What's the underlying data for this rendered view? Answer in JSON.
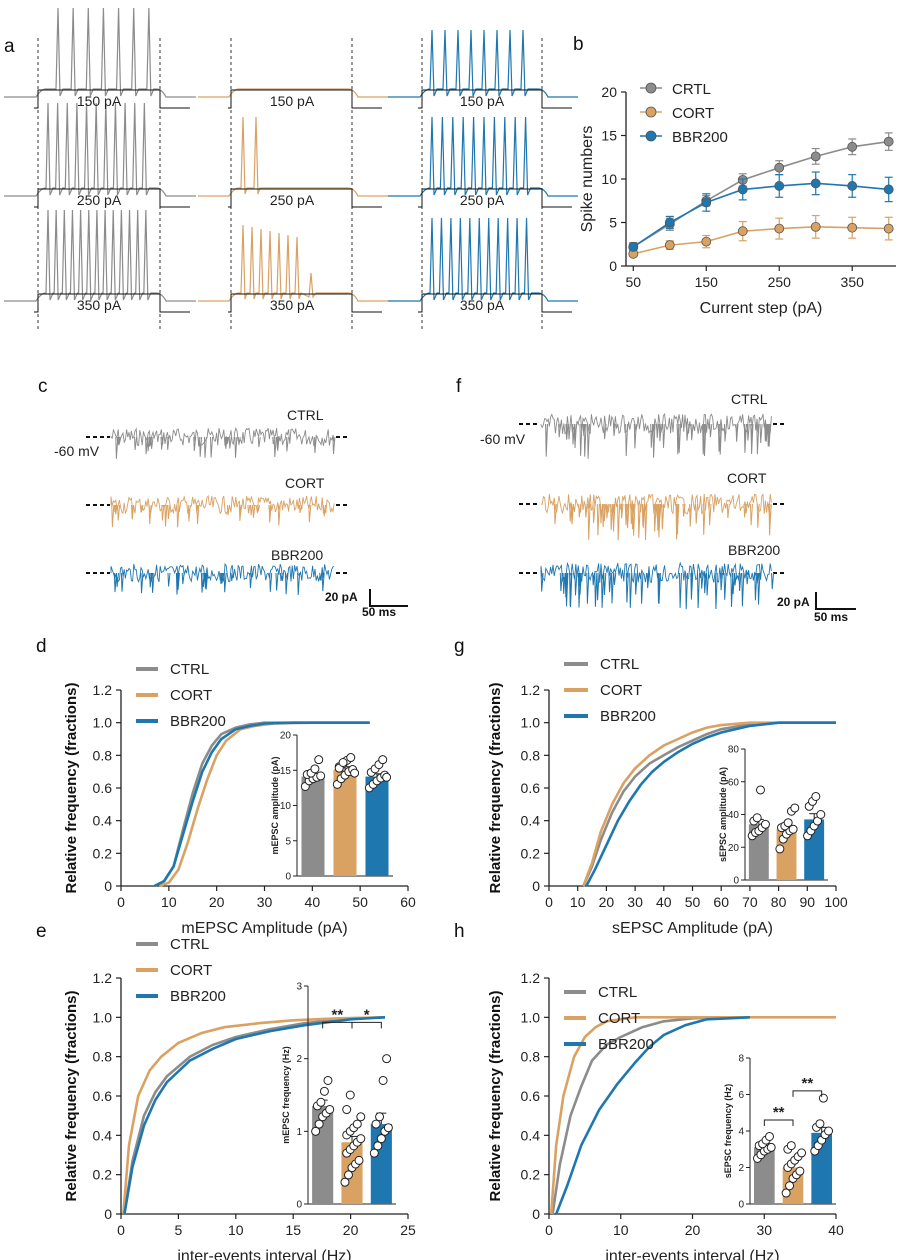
{
  "colors": {
    "CTRL": "#8c8c8c",
    "CORT": "#d9a263",
    "BBR200": "#1f77b0"
  },
  "panel_letters": {
    "a": "a",
    "b": "b",
    "c": "c",
    "d": "d",
    "e": "e",
    "f": "f",
    "g": "g",
    "h": "h"
  },
  "panel_a": {
    "step_labels": [
      "150 pA",
      "250 pA",
      "350 pA"
    ],
    "spike_counts": {
      "CTRL": [
        7,
        11,
        13
      ],
      "CORT": [
        0,
        2,
        7
      ],
      "BBR200": [
        8,
        10,
        11
      ]
    }
  },
  "panel_c": {
    "voltage_label": "-60 mV",
    "trace_labels": [
      "CTRL",
      "CORT",
      "BBR200"
    ],
    "scale_y": "20 pA",
    "scale_x": "50 ms"
  },
  "panel_f": {
    "voltage_label": "-60 mV",
    "trace_labels": [
      "CTRL",
      "CORT",
      "BBR200"
    ],
    "scale_y": "20 pA",
    "scale_x": "50 ms"
  },
  "chart_data": [
    {
      "id": "b",
      "type": "line",
      "xlabel": "Current step (pA)",
      "ylabel": "Spike numbers",
      "xlim": [
        40,
        410
      ],
      "ylim": [
        0,
        20
      ],
      "xticks": [
        50,
        150,
        250,
        350
      ],
      "yticks": [
        0,
        5,
        10,
        15,
        20
      ],
      "legend": [
        "CRTL",
        "CORT",
        "BBR200"
      ],
      "x": [
        50,
        100,
        150,
        200,
        250,
        300,
        350,
        400
      ],
      "series": [
        {
          "name": "CRTL",
          "values": [
            2.2,
            4.8,
            7.5,
            9.9,
            11.3,
            12.6,
            13.7,
            14.3
          ],
          "err": [
            0.5,
            0.7,
            0.6,
            0.7,
            0.8,
            0.9,
            0.9,
            1.0
          ]
        },
        {
          "name": "CORT",
          "values": [
            1.4,
            2.4,
            2.8,
            4.0,
            4.3,
            4.5,
            4.4,
            4.3
          ],
          "err": [
            0.3,
            0.5,
            0.7,
            1.1,
            1.2,
            1.3,
            1.2,
            1.3
          ]
        },
        {
          "name": "BBR200",
          "values": [
            2.2,
            5.0,
            7.3,
            8.8,
            9.2,
            9.5,
            9.2,
            8.8
          ],
          "err": [
            0.4,
            0.7,
            1.0,
            1.2,
            1.3,
            1.3,
            1.3,
            1.4
          ]
        }
      ]
    },
    {
      "id": "d",
      "type": "line",
      "xlabel": "mEPSC Amplitude (pA)",
      "ylabel": "Relative frequency (fractions)",
      "xlim": [
        0,
        60
      ],
      "ylim": [
        0,
        1.2
      ],
      "xticks": [
        0,
        10,
        20,
        30,
        40,
        50,
        60
      ],
      "yticks": [
        0,
        0.2,
        0.4,
        0.6,
        0.8,
        1.0,
        1.2
      ],
      "ytick_labels": [
        "0",
        "0.2",
        "0.4",
        "0.6",
        "0.8",
        "1.0",
        "1.2"
      ],
      "legend": [
        "CTRL",
        "CORT",
        "BBR200"
      ],
      "series": [
        {
          "name": "CTRL",
          "x": [
            7,
            9,
            11,
            13,
            15,
            17,
            19,
            21,
            24,
            27,
            30,
            35,
            52
          ],
          "y": [
            0,
            0.03,
            0.12,
            0.35,
            0.57,
            0.75,
            0.86,
            0.93,
            0.97,
            0.99,
            1.0,
            1.0,
            1.0
          ]
        },
        {
          "name": "CORT",
          "x": [
            8,
            10,
            12,
            14,
            16,
            18,
            20,
            22,
            25,
            28,
            32,
            40,
            52
          ],
          "y": [
            0,
            0.02,
            0.1,
            0.27,
            0.47,
            0.65,
            0.8,
            0.89,
            0.96,
            0.98,
            0.995,
            1.0,
            1.0
          ]
        },
        {
          "name": "BBR200",
          "x": [
            7,
            9,
            11,
            13,
            15,
            17,
            19,
            21,
            24,
            27,
            30,
            36,
            52
          ],
          "y": [
            0,
            0.03,
            0.12,
            0.32,
            0.52,
            0.7,
            0.82,
            0.9,
            0.96,
            0.98,
            0.995,
            1.0,
            1.0
          ]
        }
      ],
      "inset": {
        "type": "bar",
        "ylabel": "mEPSC amplitude (pA)",
        "ylim": [
          0,
          20
        ],
        "yticks": [
          0,
          5,
          10,
          15,
          20
        ],
        "categories": [
          "CTRL",
          "CORT",
          "BBR200"
        ],
        "values": [
          14.1,
          15.1,
          14.1
        ],
        "err": [
          0.4,
          0.4,
          0.4
        ],
        "points": [
          [
            12.7,
            13.5,
            13.8,
            14.0,
            14.2,
            14.4,
            14.6,
            15.2,
            16.5
          ],
          [
            13.0,
            13.8,
            14.3,
            14.8,
            15.1,
            15.5,
            15.9,
            16.4,
            16.8,
            14.6,
            15.3,
            16.1
          ],
          [
            12.5,
            13.0,
            13.5,
            13.9,
            14.3,
            14.7,
            15.2,
            15.8,
            16.5,
            14.0
          ]
        ],
        "significance": []
      }
    },
    {
      "id": "e",
      "type": "line",
      "xlabel": "inter-events interval (Hz)",
      "ylabel": "Relative frequency (fractions)",
      "xlim": [
        0,
        25
      ],
      "ylim": [
        0,
        1.2
      ],
      "xticks": [
        0,
        5,
        10,
        15,
        20,
        25
      ],
      "yticks": [
        0,
        0.2,
        0.4,
        0.6,
        0.8,
        1.0,
        1.2
      ],
      "ytick_labels": [
        "0",
        "0.2",
        "0.4",
        "0.6",
        "0.8",
        "1.0",
        "1.2"
      ],
      "legend": [
        "CTRL",
        "CORT",
        "BBR200"
      ],
      "series": [
        {
          "name": "CTRL",
          "x": [
            0.3,
            1,
            2,
            3,
            4,
            6,
            8,
            10,
            13,
            16,
            20,
            23
          ],
          "y": [
            0,
            0.27,
            0.5,
            0.62,
            0.7,
            0.8,
            0.86,
            0.9,
            0.94,
            0.97,
            0.995,
            1.0
          ]
        },
        {
          "name": "CORT",
          "x": [
            0.2,
            0.7,
            1.5,
            2.5,
            3.5,
            5,
            7,
            9,
            12,
            15,
            19,
            23
          ],
          "y": [
            0,
            0.35,
            0.6,
            0.73,
            0.8,
            0.87,
            0.92,
            0.95,
            0.97,
            0.985,
            0.995,
            1.0
          ]
        },
        {
          "name": "BBR200",
          "x": [
            0.3,
            1,
            2,
            3,
            4,
            6,
            8,
            10,
            13,
            16,
            20,
            23
          ],
          "y": [
            0,
            0.24,
            0.45,
            0.58,
            0.67,
            0.78,
            0.84,
            0.89,
            0.93,
            0.96,
            0.99,
            1.0
          ]
        }
      ],
      "inset": {
        "type": "bar",
        "ylabel": "mEPSC frequency (Hz)",
        "ylim": [
          0,
          3
        ],
        "yticks": [
          0,
          1,
          2,
          3
        ],
        "categories": [
          "CTRL",
          "CORT",
          "BBR200"
        ],
        "values": [
          1.35,
          0.85,
          1.1
        ],
        "err": [
          0.08,
          0.08,
          0.15
        ],
        "points": [
          [
            1.0,
            1.1,
            1.2,
            1.25,
            1.3,
            1.35,
            1.4,
            1.55,
            1.7
          ],
          [
            0.3,
            0.4,
            0.5,
            0.55,
            0.6,
            0.7,
            0.75,
            0.8,
            0.85,
            0.9,
            0.95,
            1.0,
            1.05,
            1.1,
            1.2,
            1.3,
            1.5
          ],
          [
            0.7,
            0.8,
            0.9,
            1.0,
            1.05,
            1.1,
            1.2,
            1.7,
            2.0
          ]
        ],
        "significance": [
          {
            "from": 0,
            "to": 1,
            "label": "**",
            "y": 2.5
          },
          {
            "from": 1,
            "to": 2,
            "label": "*",
            "y": 2.5
          }
        ]
      }
    },
    {
      "id": "g",
      "type": "line",
      "xlabel": "sEPSC Amplitude (pA)",
      "ylabel": "Relative frequency (fractions)",
      "xlim": [
        0,
        100
      ],
      "ylim": [
        0,
        1.2
      ],
      "xticks": [
        0,
        10,
        20,
        30,
        40,
        50,
        60,
        70,
        80,
        90,
        100
      ],
      "yticks": [
        0,
        0.2,
        0.4,
        0.6,
        0.8,
        1.0,
        1.2
      ],
      "ytick_labels": [
        "0",
        "0.2",
        "0.4",
        "0.6",
        "0.8",
        "1.0",
        "1.2"
      ],
      "legend": [
        "CTRL",
        "CORT",
        "BBR200"
      ],
      "series": [
        {
          "name": "CTRL",
          "x": [
            12,
            15,
            18,
            22,
            26,
            30,
            35,
            40,
            45,
            50,
            55,
            60,
            70,
            80,
            100
          ],
          "y": [
            0,
            0.12,
            0.28,
            0.45,
            0.58,
            0.67,
            0.75,
            0.8,
            0.85,
            0.89,
            0.93,
            0.96,
            0.99,
            1.0,
            1.0
          ]
        },
        {
          "name": "CORT",
          "x": [
            12,
            15,
            18,
            22,
            26,
            30,
            35,
            40,
            45,
            50,
            55,
            60,
            70,
            80,
            100
          ],
          "y": [
            0,
            0.14,
            0.33,
            0.5,
            0.63,
            0.72,
            0.8,
            0.86,
            0.9,
            0.94,
            0.97,
            0.985,
            1.0,
            1.0,
            1.0
          ]
        },
        {
          "name": "BBR200",
          "x": [
            13,
            16,
            20,
            24,
            28,
            32,
            36,
            40,
            45,
            50,
            55,
            60,
            70,
            80,
            100
          ],
          "y": [
            0,
            0.1,
            0.25,
            0.4,
            0.52,
            0.62,
            0.7,
            0.76,
            0.82,
            0.87,
            0.91,
            0.94,
            0.98,
            1.0,
            1.0
          ]
        }
      ],
      "inset": {
        "type": "bar",
        "ylabel": "sEPSC amplitude (pA)",
        "ylim": [
          0,
          80
        ],
        "yticks": [
          0,
          20,
          40,
          60,
          80
        ],
        "categories": [
          "CTRL",
          "CORT",
          "BBR200"
        ],
        "values": [
          34,
          31,
          37
        ],
        "err": [
          3,
          3,
          3.5
        ],
        "points": [
          [
            27,
            29,
            30,
            32,
            34,
            36,
            38,
            55
          ],
          [
            19,
            25,
            28,
            30,
            31,
            32,
            33,
            35,
            42,
            44
          ],
          [
            27,
            30,
            33,
            36,
            40,
            45,
            48,
            51
          ]
        ],
        "significance": []
      }
    },
    {
      "id": "h",
      "type": "line",
      "xlabel": "inter-events interval (Hz)",
      "ylabel": "Relative frequency (fractions)",
      "xlim": [
        0,
        40
      ],
      "ylim": [
        0,
        1.2
      ],
      "xticks": [
        0,
        10,
        20,
        30,
        40
      ],
      "yticks": [
        0,
        0.2,
        0.4,
        0.6,
        0.8,
        1.0,
        1.2
      ],
      "ytick_labels": [
        "0",
        "0.2",
        "0.4",
        "0.6",
        "0.8",
        "1.0",
        "1.2"
      ],
      "legend": [
        "CTRL",
        "CORT",
        "BBR200"
      ],
      "series": [
        {
          "name": "CTRL",
          "x": [
            0.5,
            1.5,
            3,
            4.5,
            6,
            8,
            10,
            13,
            16,
            20,
            24
          ],
          "y": [
            0,
            0.25,
            0.5,
            0.65,
            0.78,
            0.86,
            0.9,
            0.95,
            0.98,
            0.995,
            1.0
          ]
        },
        {
          "name": "CORT",
          "x": [
            0.3,
            1,
            2,
            3.5,
            5,
            6.5,
            8,
            10,
            12,
            14,
            40
          ],
          "y": [
            0,
            0.35,
            0.6,
            0.8,
            0.9,
            0.95,
            0.98,
            0.99,
            1.0,
            1.0,
            1.0
          ]
        },
        {
          "name": "BBR200",
          "x": [
            1,
            2.5,
            4.5,
            7,
            9.5,
            12,
            14,
            16,
            19,
            22,
            28
          ],
          "y": [
            0,
            0.14,
            0.35,
            0.53,
            0.66,
            0.77,
            0.85,
            0.91,
            0.96,
            0.99,
            1.0
          ]
        }
      ],
      "inset": {
        "type": "bar",
        "ylabel": "sEPSC frequency (Hz)",
        "ylim": [
          0,
          8
        ],
        "yticks": [
          0,
          2,
          4,
          6,
          8
        ],
        "categories": [
          "CTRL",
          "CORT",
          "BBR200"
        ],
        "values": [
          3.1,
          2.0,
          3.9
        ],
        "err": [
          0.2,
          0.3,
          0.3
        ],
        "points": [
          [
            2.5,
            2.7,
            2.9,
            3.0,
            3.1,
            3.2,
            3.3,
            3.5,
            3.7
          ],
          [
            0.6,
            1.0,
            1.4,
            1.6,
            1.8,
            2.0,
            2.2,
            2.4,
            2.6,
            2.8,
            3.0,
            3.2
          ],
          [
            2.9,
            3.2,
            3.5,
            3.8,
            4.0,
            4.2,
            4.4,
            5.8
          ]
        ],
        "significance": [
          {
            "from": 0,
            "to": 1,
            "label": "**",
            "y": 4.6
          },
          {
            "from": 1,
            "to": 2,
            "label": "**",
            "y": 6.2
          }
        ]
      }
    }
  ]
}
